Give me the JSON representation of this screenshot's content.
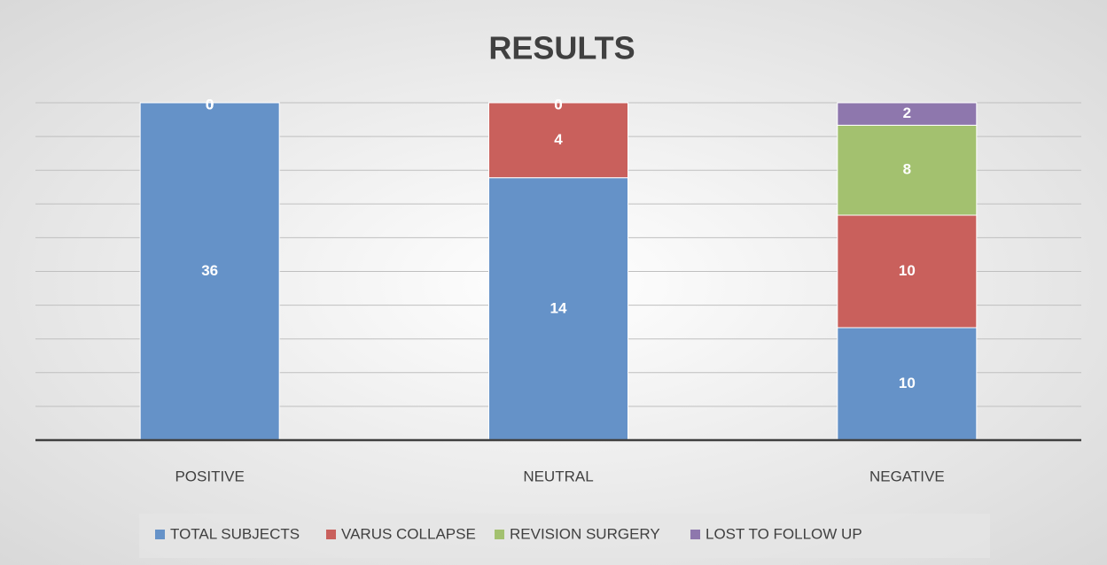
{
  "chart_data": {
    "type": "percent-stacked-bar",
    "title": "RESULTS",
    "categories": [
      "POSITIVE",
      "NEUTRAL",
      "NEGATIVE"
    ],
    "series": [
      {
        "name": "TOTAL SUBJECTS",
        "color": "#6592c8",
        "values": [
          36,
          14,
          10
        ]
      },
      {
        "name": "VARUS COLLAPSE",
        "color": "#c9605c",
        "values": [
          0,
          4,
          10
        ]
      },
      {
        "name": "REVISION SURGERY",
        "color": "#a3c16f",
        "values": [
          0,
          0,
          8
        ]
      },
      {
        "name": "LOST TO FOLLOW UP",
        "color": "#8e77ad",
        "values": [
          0,
          0,
          2
        ]
      }
    ],
    "ylim": [
      0,
      100
    ],
    "yticks": [
      0,
      10,
      20,
      30,
      40,
      50,
      60,
      70,
      80,
      90,
      100
    ],
    "tick_labels": false,
    "grid": true,
    "legend": "bottom"
  }
}
